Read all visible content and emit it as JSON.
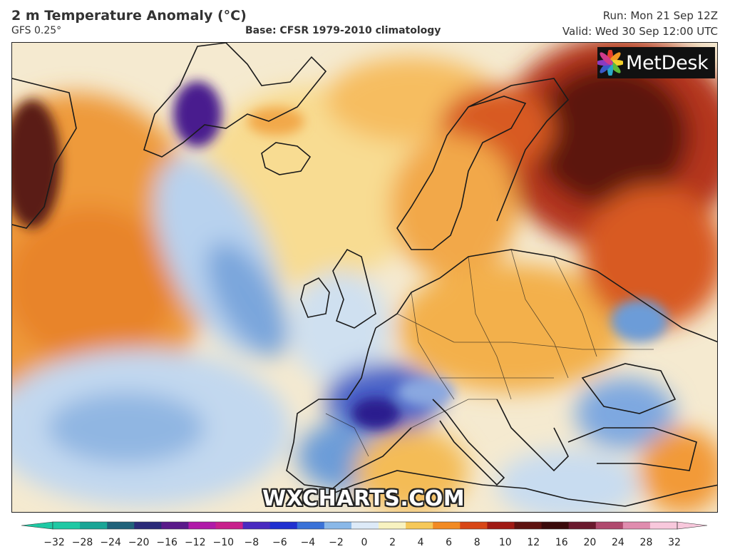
{
  "header": {
    "title": "2 m Temperature Anomaly (°C)",
    "model": "GFS 0.25°",
    "base": "Base: CFSR 1979-2010 climatology",
    "run": "Run: Mon 21 Sep 12Z",
    "valid": "Valid: Wed 30 Sep 12:00 UTC"
  },
  "logo": {
    "text": "MetDesk",
    "icon": "metdesk-flower-icon"
  },
  "watermark": "WXCHARTS.COM",
  "colorbar": {
    "ticks": [
      "−32",
      "−28",
      "−24",
      "−20",
      "−16",
      "−12",
      "−10",
      "−8",
      "−6",
      "−4",
      "−2",
      "0",
      "2",
      "4",
      "6",
      "8",
      "10",
      "12",
      "16",
      "20",
      "24",
      "28",
      "32"
    ],
    "colors": [
      "#1fc9a4",
      "#1aa596",
      "#20627a",
      "#2a2a78",
      "#5a1a8a",
      "#b01aa8",
      "#c8208c",
      "#4a2ac0",
      "#2030d0",
      "#3a72d8",
      "#8ab8e8",
      "#ddeaf8",
      "#f8f2c0",
      "#f6c858",
      "#f28a22",
      "#d84616",
      "#a01a14",
      "#5e1210",
      "#3a0a0a",
      "#6a1a2e",
      "#b04a6e",
      "#e08cae",
      "#f8c8dc"
    ]
  },
  "map": {
    "region": "North Atlantic and Europe",
    "palette": {
      "deep_red": "#5c1410",
      "red": "#b8361a",
      "orange": "#ee8a2a",
      "light_orange": "#f6b455",
      "pale_yellow": "#fae6a6",
      "white": "#f4f4ee",
      "light_blue": "#cfe0f0",
      "blue": "#6c9cd8",
      "deep_blue": "#2c3aa8",
      "purple": "#4a1a8e"
    }
  }
}
